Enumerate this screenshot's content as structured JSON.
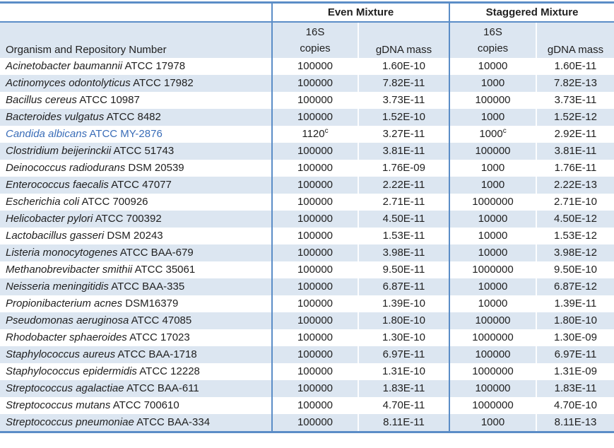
{
  "table": {
    "group_even": "Even Mixture",
    "group_staggered": "Staggered Mixture",
    "organism_header": "Organism and Repository Number",
    "sub_16s": "16S",
    "sub_copies": "copies",
    "sub_gdna": "gDNA mass",
    "colors": {
      "stripe": "#dce6f1",
      "border_blue": "#5b8dc7",
      "highlight_text": "#3a6db8",
      "text": "#212121"
    },
    "rows": [
      {
        "name": "Acinetobacter baumannii",
        "repo": "ATCC 17978",
        "even_copies": "100000",
        "even_copies_sup": "",
        "even_gdna": "1.60E-10",
        "stag_copies": "10000",
        "stag_copies_sup": "",
        "stag_gdna": "1.60E-11",
        "highlight": false
      },
      {
        "name": "Actinomyces odontolyticus",
        "repo": "ATCC 17982",
        "even_copies": "100000",
        "even_copies_sup": "",
        "even_gdna": "7.82E-11",
        "stag_copies": "1000",
        "stag_copies_sup": "",
        "stag_gdna": "7.82E-13",
        "highlight": false
      },
      {
        "name": "Bacillus cereus",
        "repo": "ATCC 10987",
        "even_copies": "100000",
        "even_copies_sup": "",
        "even_gdna": "3.73E-11",
        "stag_copies": "100000",
        "stag_copies_sup": "",
        "stag_gdna": "3.73E-11",
        "highlight": false
      },
      {
        "name": "Bacteroides vulgatus",
        "repo": "ATCC 8482",
        "even_copies": "100000",
        "even_copies_sup": "",
        "even_gdna": "1.52E-10",
        "stag_copies": "1000",
        "stag_copies_sup": "",
        "stag_gdna": "1.52E-12",
        "highlight": false
      },
      {
        "name": "Candida albicans",
        "repo": "ATCC MY-2876",
        "even_copies": "1120",
        "even_copies_sup": "c",
        "even_gdna": "3.27E-11",
        "stag_copies": "1000",
        "stag_copies_sup": "c",
        "stag_gdna": "2.92E-11",
        "highlight": true
      },
      {
        "name": "Clostridium beijerinckii",
        "repo": "ATCC 51743",
        "even_copies": "100000",
        "even_copies_sup": "",
        "even_gdna": "3.81E-11",
        "stag_copies": "100000",
        "stag_copies_sup": "",
        "stag_gdna": "3.81E-11",
        "highlight": false
      },
      {
        "name": "Deinococcus radiodurans",
        "repo": "DSM 20539",
        "even_copies": "100000",
        "even_copies_sup": "",
        "even_gdna": "1.76E-09",
        "stag_copies": "1000",
        "stag_copies_sup": "",
        "stag_gdna": "1.76E-11",
        "highlight": false
      },
      {
        "name": "Enterococcus faecalis",
        "repo": "ATCC 47077",
        "even_copies": "100000",
        "even_copies_sup": "",
        "even_gdna": "2.22E-11",
        "stag_copies": "1000",
        "stag_copies_sup": "",
        "stag_gdna": "2.22E-13",
        "highlight": false
      },
      {
        "name": "Escherichia coli",
        "repo": "ATCC 700926",
        "even_copies": "100000",
        "even_copies_sup": "",
        "even_gdna": "2.71E-11",
        "stag_copies": "1000000",
        "stag_copies_sup": "",
        "stag_gdna": "2.71E-10",
        "highlight": false
      },
      {
        "name": "Helicobacter pylori",
        "repo": "ATCC 700392",
        "even_copies": "100000",
        "even_copies_sup": "",
        "even_gdna": "4.50E-11",
        "stag_copies": "10000",
        "stag_copies_sup": "",
        "stag_gdna": "4.50E-12",
        "highlight": false
      },
      {
        "name": "Lactobacillus gasseri",
        "repo": "DSM 20243",
        "even_copies": "100000",
        "even_copies_sup": "",
        "even_gdna": "1.53E-11",
        "stag_copies": "10000",
        "stag_copies_sup": "",
        "stag_gdna": "1.53E-12",
        "highlight": false
      },
      {
        "name": "Listeria monocytogenes",
        "repo": "ATCC BAA-679",
        "even_copies": "100000",
        "even_copies_sup": "",
        "even_gdna": "3.98E-11",
        "stag_copies": "10000",
        "stag_copies_sup": "",
        "stag_gdna": "3.98E-12",
        "highlight": false
      },
      {
        "name": "Methanobrevibacter smithii",
        "repo": "ATCC 35061",
        "even_copies": "100000",
        "even_copies_sup": "",
        "even_gdna": "9.50E-11",
        "stag_copies": "1000000",
        "stag_copies_sup": "",
        "stag_gdna": "9.50E-10",
        "highlight": false
      },
      {
        "name": "Neisseria meningitidis",
        "repo": "ATCC BAA-335",
        "even_copies": "100000",
        "even_copies_sup": "",
        "even_gdna": "6.87E-11",
        "stag_copies": "10000",
        "stag_copies_sup": "",
        "stag_gdna": "6.87E-12",
        "highlight": false
      },
      {
        "name": "Propionibacterium acnes",
        "repo": "DSM16379",
        "even_copies": "100000",
        "even_copies_sup": "",
        "even_gdna": "1.39E-10",
        "stag_copies": "10000",
        "stag_copies_sup": "",
        "stag_gdna": "1.39E-11",
        "highlight": false
      },
      {
        "name": "Pseudomonas aeruginosa",
        "repo": "ATCC 47085",
        "even_copies": "100000",
        "even_copies_sup": "",
        "even_gdna": "1.80E-10",
        "stag_copies": "100000",
        "stag_copies_sup": "",
        "stag_gdna": "1.80E-10",
        "highlight": false
      },
      {
        "name": "Rhodobacter sphaeroides",
        "repo": "ATCC 17023",
        "even_copies": "100000",
        "even_copies_sup": "",
        "even_gdna": "1.30E-10",
        "stag_copies": "1000000",
        "stag_copies_sup": "",
        "stag_gdna": "1.30E-09",
        "highlight": false
      },
      {
        "name": "Staphylococcus aureus",
        "repo": "ATCC BAA-1718",
        "even_copies": "100000",
        "even_copies_sup": "",
        "even_gdna": "6.97E-11",
        "stag_copies": "100000",
        "stag_copies_sup": "",
        "stag_gdna": "6.97E-11",
        "highlight": false
      },
      {
        "name": "Staphylococcus epidermidis",
        "repo": "ATCC 12228",
        "even_copies": "100000",
        "even_copies_sup": "",
        "even_gdna": "1.31E-10",
        "stag_copies": "1000000",
        "stag_copies_sup": "",
        "stag_gdna": "1.31E-09",
        "highlight": false
      },
      {
        "name": "Streptococcus agalactiae",
        "repo": "ATCC BAA-611",
        "even_copies": "100000",
        "even_copies_sup": "",
        "even_gdna": "1.83E-11",
        "stag_copies": "100000",
        "stag_copies_sup": "",
        "stag_gdna": "1.83E-11",
        "highlight": false
      },
      {
        "name": "Streptococcus mutans",
        "repo": "ATCC 700610",
        "even_copies": "100000",
        "even_copies_sup": "",
        "even_gdna": "4.70E-11",
        "stag_copies": "1000000",
        "stag_copies_sup": "",
        "stag_gdna": "4.70E-10",
        "highlight": false
      },
      {
        "name": "Streptococcus pneumoniae",
        "repo": "ATCC BAA-334",
        "even_copies": "100000",
        "even_copies_sup": "",
        "even_gdna": "8.11E-11",
        "stag_copies": "1000",
        "stag_copies_sup": "",
        "stag_gdna": "8.11E-13",
        "highlight": false
      }
    ]
  }
}
